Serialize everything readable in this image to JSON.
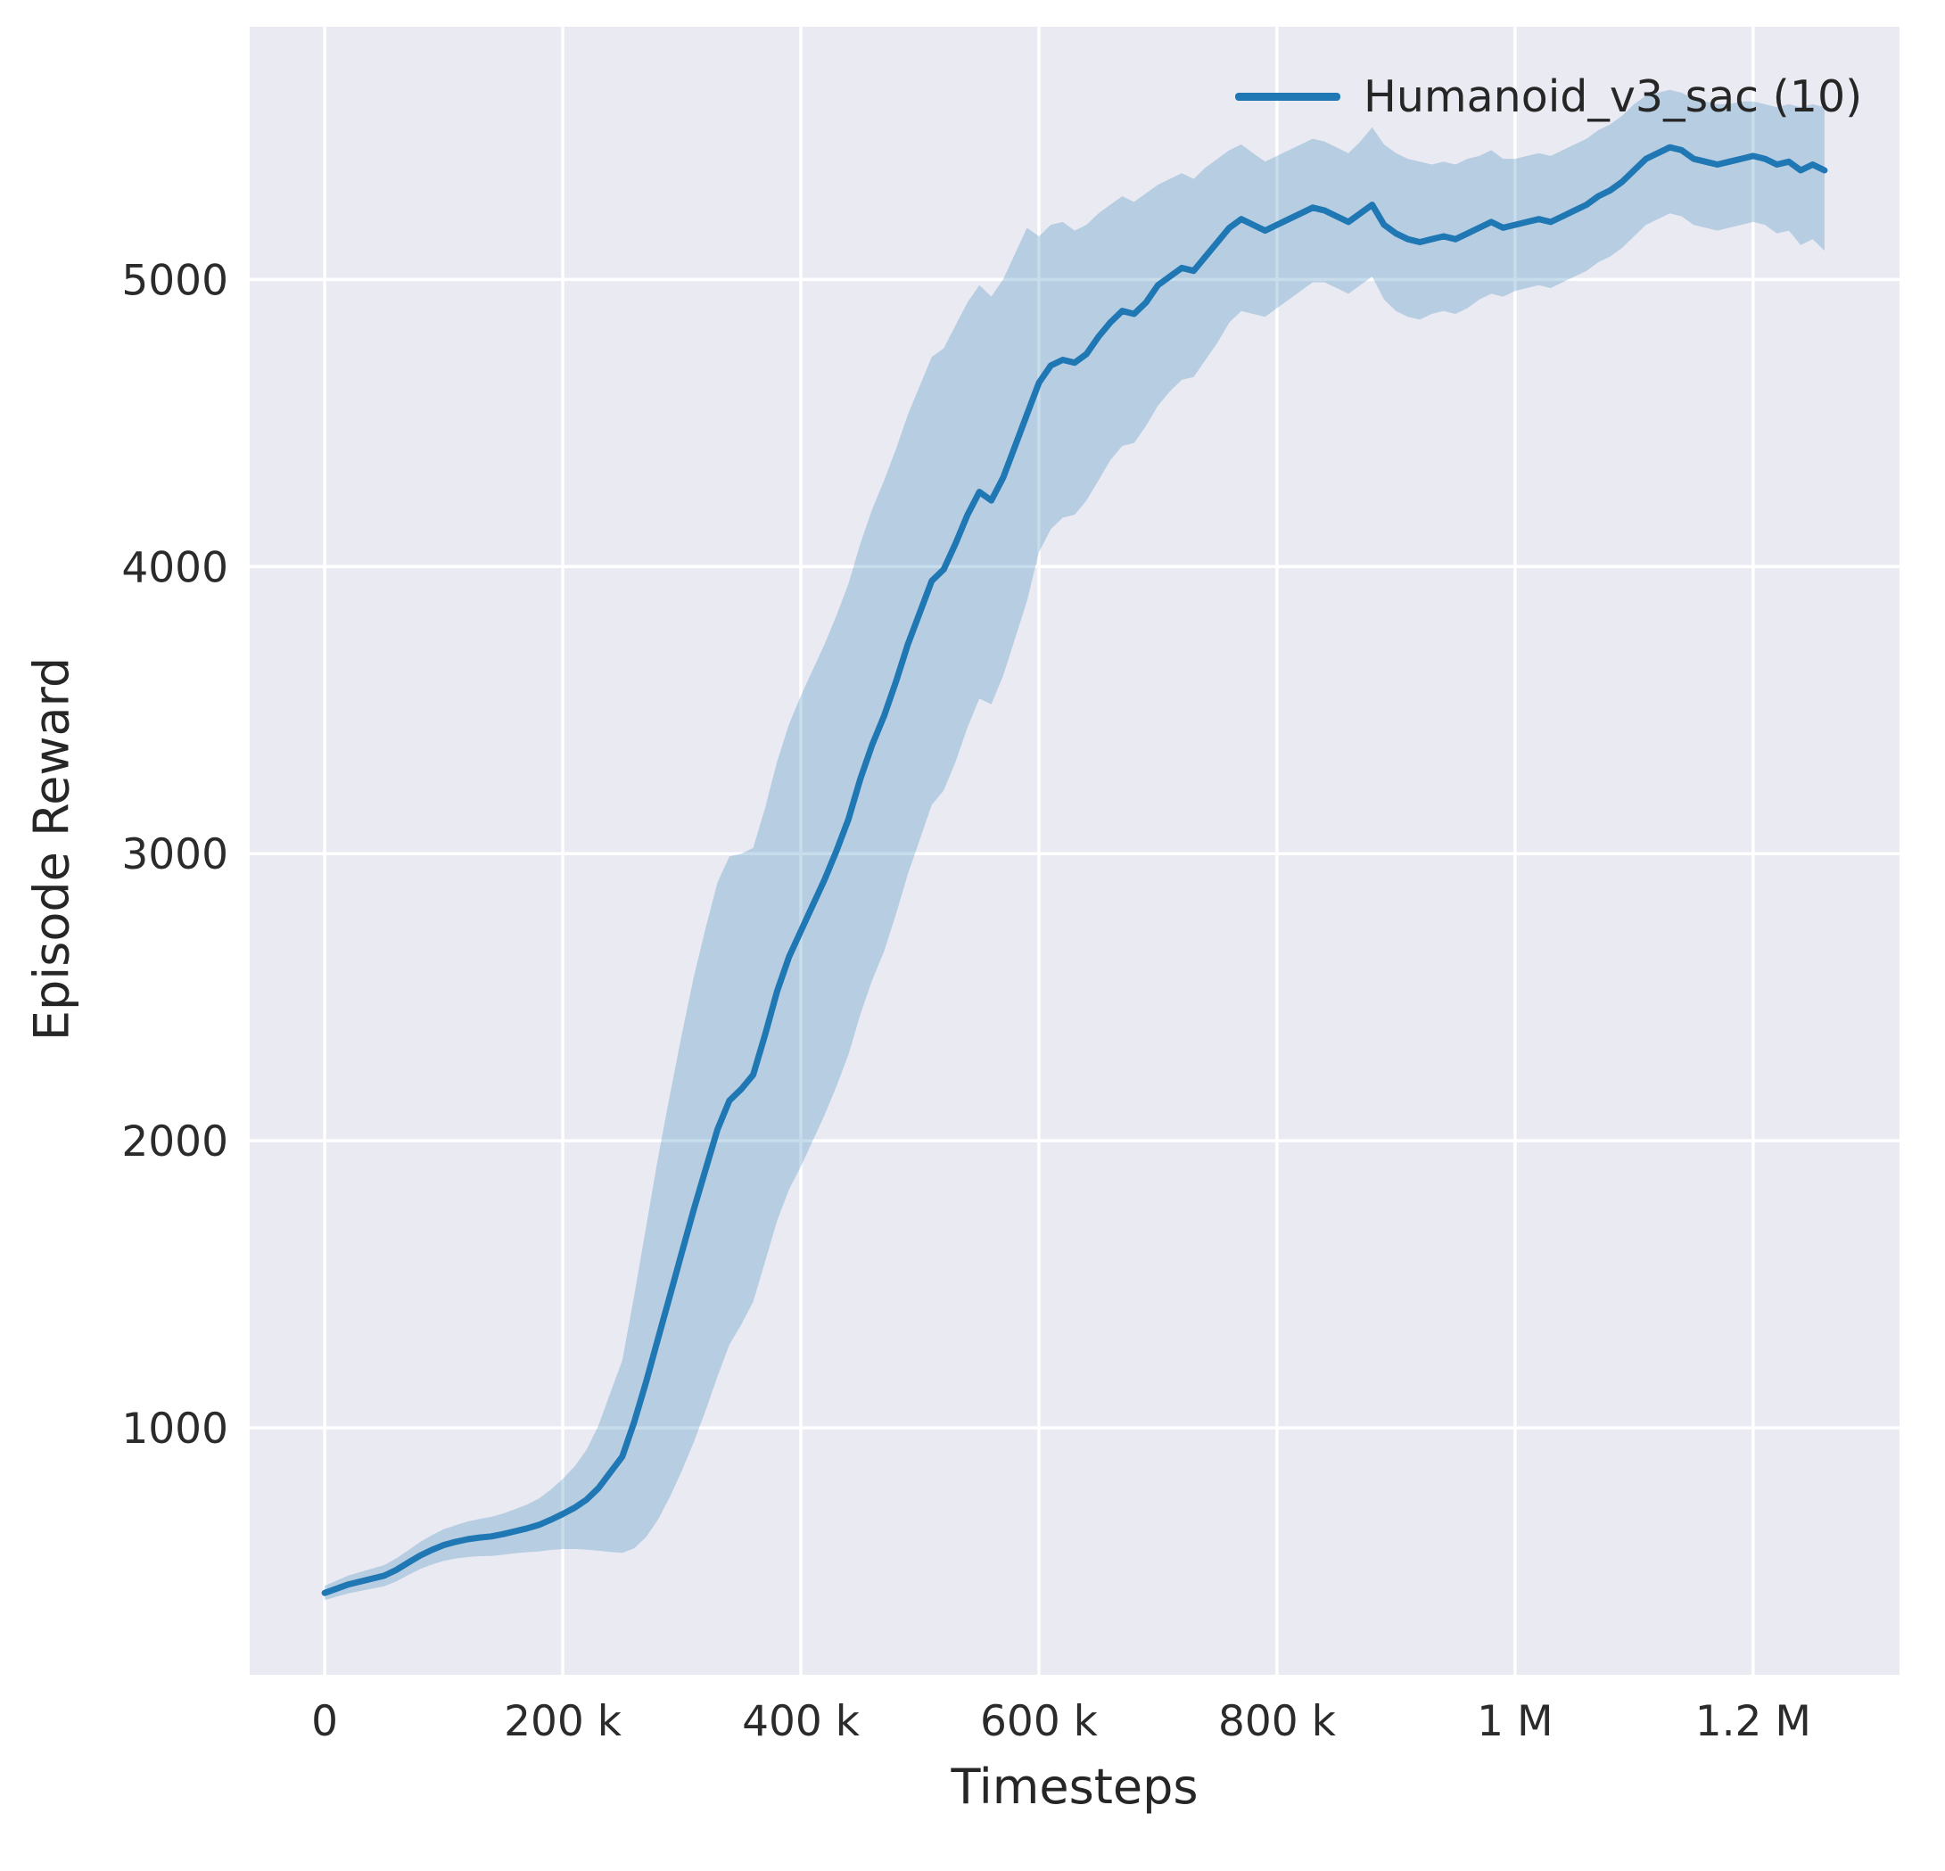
{
  "style": {
    "plot_bg": "#eaeaf2",
    "grid_color": "#ffffff",
    "text_color": "#2b2b2b",
    "line_color": "#1f77b4",
    "band_opacity": 0.25
  },
  "chart_data": {
    "type": "line",
    "title": "",
    "xlabel": "Timesteps",
    "ylabel": "Episode Reward",
    "legend_label": "Humanoid_v3_sac (10)",
    "legend_position": "upper right",
    "grid": true,
    "xlim": [
      -63000,
      1323000
    ],
    "ylim": [
      140,
      5880
    ],
    "xticks": [
      {
        "value": 0,
        "label": "0"
      },
      {
        "value": 200000,
        "label": "200 k"
      },
      {
        "value": 400000,
        "label": "400 k"
      },
      {
        "value": 600000,
        "label": "600 k"
      },
      {
        "value": 800000,
        "label": "800 k"
      },
      {
        "value": 1000000,
        "label": "1 M"
      },
      {
        "value": 1200000,
        "label": "1.2 M"
      }
    ],
    "yticks": [
      {
        "value": 1000,
        "label": "1000"
      },
      {
        "value": 2000,
        "label": "2000"
      },
      {
        "value": 3000,
        "label": "3000"
      },
      {
        "value": 4000,
        "label": "4000"
      },
      {
        "value": 5000,
        "label": "5000"
      }
    ],
    "series": [
      {
        "name": "Humanoid_v3_sac (10)",
        "color": "#1f77b4",
        "x": [
          0,
          10000,
          20000,
          30000,
          40000,
          50000,
          60000,
          70000,
          80000,
          90000,
          100000,
          110000,
          120000,
          130000,
          140000,
          150000,
          160000,
          170000,
          180000,
          190000,
          200000,
          210000,
          220000,
          230000,
          240000,
          250000,
          260000,
          270000,
          280000,
          290000,
          300000,
          310000,
          320000,
          330000,
          340000,
          350000,
          360000,
          370000,
          380000,
          390000,
          400000,
          410000,
          420000,
          430000,
          440000,
          450000,
          460000,
          470000,
          480000,
          490000,
          500000,
          510000,
          520000,
          530000,
          540000,
          550000,
          560000,
          570000,
          580000,
          590000,
          600000,
          610000,
          620000,
          630000,
          640000,
          650000,
          660000,
          670000,
          680000,
          690000,
          700000,
          710000,
          720000,
          730000,
          740000,
          750000,
          760000,
          770000,
          780000,
          790000,
          800000,
          810000,
          820000,
          830000,
          840000,
          850000,
          860000,
          870000,
          880000,
          890000,
          900000,
          910000,
          920000,
          930000,
          940000,
          950000,
          960000,
          970000,
          980000,
          990000,
          1000000,
          1010000,
          1020000,
          1030000,
          1040000,
          1050000,
          1060000,
          1070000,
          1080000,
          1090000,
          1100000,
          1110000,
          1120000,
          1130000,
          1140000,
          1150000,
          1160000,
          1170000,
          1180000,
          1190000,
          1200000,
          1210000,
          1220000,
          1230000,
          1240000,
          1250000,
          1260000
        ],
        "mean": [
          425,
          440,
          455,
          465,
          475,
          485,
          505,
          530,
          555,
          575,
          592,
          603,
          612,
          618,
          622,
          630,
          640,
          650,
          662,
          680,
          700,
          722,
          750,
          790,
          845,
          900,
          1020,
          1160,
          1310,
          1460,
          1610,
          1760,
          1900,
          2040,
          2140,
          2180,
          2230,
          2370,
          2520,
          2640,
          2730,
          2820,
          2910,
          3010,
          3120,
          3260,
          3380,
          3480,
          3600,
          3730,
          3840,
          3950,
          3990,
          4080,
          4180,
          4260,
          4230,
          4310,
          4420,
          4530,
          4640,
          4700,
          4720,
          4710,
          4740,
          4800,
          4850,
          4890,
          4880,
          4920,
          4980,
          5010,
          5040,
          5030,
          5080,
          5130,
          5180,
          5210,
          5190,
          5170,
          5190,
          5210,
          5230,
          5250,
          5240,
          5220,
          5200,
          5230,
          5260,
          5190,
          5160,
          5140,
          5130,
          5140,
          5150,
          5140,
          5160,
          5180,
          5200,
          5180,
          5190,
          5200,
          5210,
          5200,
          5220,
          5240,
          5260,
          5290,
          5310,
          5340,
          5380,
          5420,
          5440,
          5460,
          5450,
          5420,
          5410,
          5400,
          5410,
          5420,
          5430,
          5420,
          5400,
          5410,
          5380,
          5400,
          5380
        ],
        "lo": [
          400,
          412,
          424,
          432,
          440,
          448,
          465,
          487,
          508,
          524,
          537,
          545,
          550,
          553,
          554,
          558,
          563,
          567,
          570,
          575,
          578,
          578,
          576,
          572,
          568,
          565,
          580,
          620,
          680,
          760,
          850,
          950,
          1060,
          1180,
          1290,
          1360,
          1440,
          1580,
          1720,
          1830,
          1910,
          2000,
          2090,
          2190,
          2300,
          2440,
          2560,
          2660,
          2790,
          2930,
          3050,
          3170,
          3220,
          3320,
          3440,
          3540,
          3520,
          3620,
          3750,
          3880,
          4050,
          4130,
          4170,
          4180,
          4230,
          4300,
          4370,
          4420,
          4430,
          4490,
          4560,
          4610,
          4650,
          4660,
          4720,
          4780,
          4850,
          4890,
          4880,
          4870,
          4900,
          4930,
          4960,
          4990,
          4990,
          4970,
          4950,
          4980,
          5010,
          4930,
          4890,
          4870,
          4860,
          4880,
          4890,
          4880,
          4900,
          4930,
          4950,
          4940,
          4960,
          4970,
          4980,
          4970,
          4990,
          5010,
          5030,
          5060,
          5080,
          5110,
          5150,
          5190,
          5210,
          5230,
          5220,
          5190,
          5180,
          5170,
          5180,
          5190,
          5200,
          5190,
          5160,
          5170,
          5120,
          5140,
          5100
        ],
        "hi": [
          450,
          468,
          486,
          498,
          510,
          522,
          545,
          573,
          602,
          626,
          647,
          661,
          674,
          683,
          690,
          702,
          717,
          733,
          754,
          785,
          822,
          866,
          924,
          1008,
          1122,
          1235,
          1460,
          1700,
          1940,
          2160,
          2370,
          2570,
          2740,
          2900,
          2990,
          3000,
          3020,
          3160,
          3320,
          3450,
          3550,
          3640,
          3730,
          3830,
          3940,
          4080,
          4200,
          4300,
          4410,
          4530,
          4630,
          4730,
          4760,
          4840,
          4920,
          4980,
          4940,
          5000,
          5090,
          5180,
          5150,
          5190,
          5200,
          5170,
          5190,
          5230,
          5260,
          5290,
          5270,
          5300,
          5330,
          5350,
          5370,
          5350,
          5390,
          5420,
          5450,
          5470,
          5440,
          5410,
          5430,
          5450,
          5470,
          5490,
          5480,
          5460,
          5440,
          5480,
          5530,
          5470,
          5440,
          5420,
          5410,
          5400,
          5410,
          5400,
          5420,
          5430,
          5450,
          5420,
          5420,
          5430,
          5440,
          5430,
          5450,
          5470,
          5490,
          5520,
          5540,
          5570,
          5610,
          5640,
          5650,
          5660,
          5650,
          5630,
          5620,
          5610,
          5610,
          5620,
          5620,
          5610,
          5600,
          5610,
          5600,
          5610,
          5600
        ]
      }
    ]
  }
}
